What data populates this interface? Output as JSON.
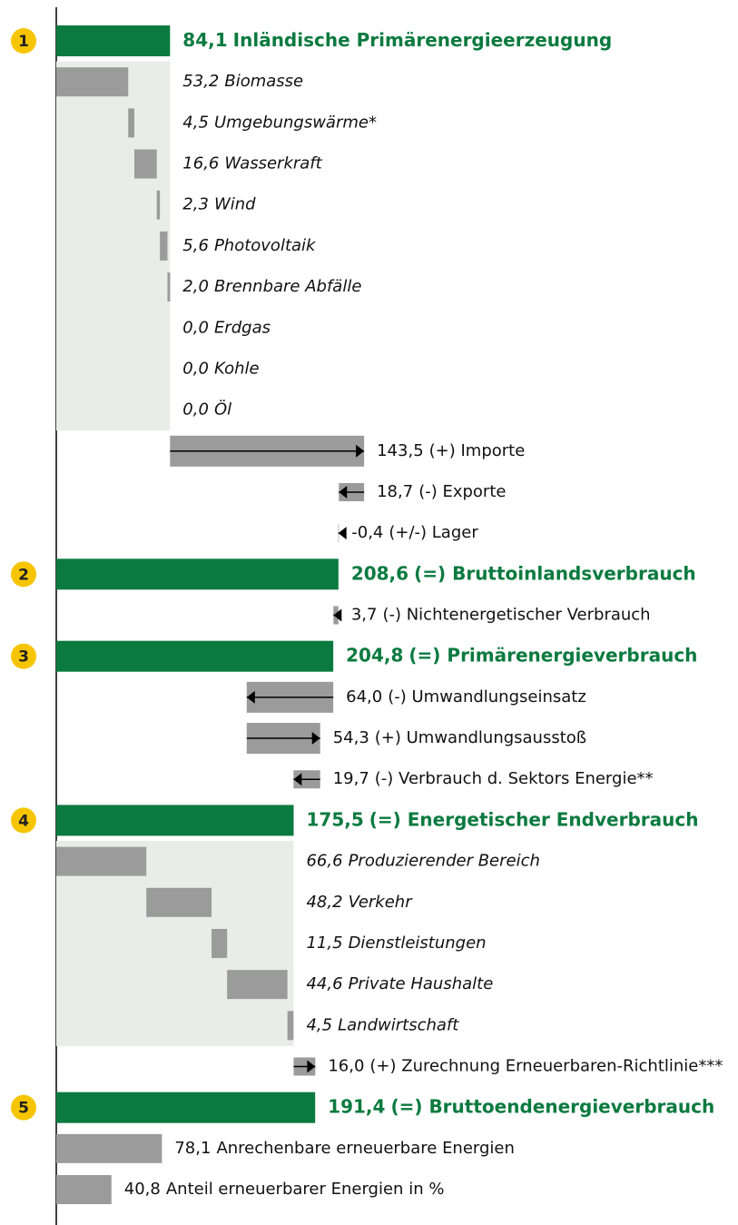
{
  "chart_data": {
    "type": "waterfall",
    "colors": {
      "total": "#0b7a3f",
      "bar": "#9b9b9b",
      "panel": "#e8ede8",
      "arrow": "#000000",
      "badge": "#f7c500"
    },
    "rows": [
      {
        "badge": "1",
        "style": "total",
        "value": 84.1,
        "value_label": "84,1",
        "name": "Inländische Primärenergieerzeugung"
      },
      {
        "style": "part",
        "value": 53.2,
        "value_label": "53,2",
        "name": "Biomasse"
      },
      {
        "style": "part",
        "value": 4.5,
        "value_label": "4,5",
        "name": "Umgebungswärme*"
      },
      {
        "style": "part",
        "value": 16.6,
        "value_label": "16,6",
        "name": "Wasserkraft"
      },
      {
        "style": "part",
        "value": 2.3,
        "value_label": "2,3",
        "name": "Wind"
      },
      {
        "style": "part",
        "value": 5.6,
        "value_label": "5,6",
        "name": "Photovoltaik"
      },
      {
        "style": "part",
        "value": 2.0,
        "value_label": "2,0",
        "name": "Brennbare Abfälle"
      },
      {
        "style": "part",
        "value": 0.0,
        "value_label": "0,0",
        "name": "Erdgas"
      },
      {
        "style": "part",
        "value": 0.0,
        "value_label": "0,0",
        "name": "Kohle"
      },
      {
        "style": "part",
        "value": 0.0,
        "value_label": "0,0",
        "name": "Öl"
      },
      {
        "style": "add",
        "value": 143.5,
        "value_label": "143,5",
        "name": "(+) Importe"
      },
      {
        "style": "subtract",
        "value": 18.7,
        "value_label": "18,7",
        "name": "(-) Exporte"
      },
      {
        "style": "add",
        "value": -0.4,
        "value_label": "-0,4",
        "name": "(+/-) Lager"
      },
      {
        "badge": "2",
        "style": "total",
        "value": 208.6,
        "value_label": "208,6",
        "name": "(=) Bruttoinlandsverbrauch"
      },
      {
        "style": "subtract",
        "value": 3.7,
        "value_label": "3,7",
        "name": "(-) Nichtenergetischer Verbrauch"
      },
      {
        "badge": "3",
        "style": "total",
        "value": 204.8,
        "value_label": "204,8",
        "name": "(=) Primärenergieverbrauch"
      },
      {
        "style": "subtract",
        "value": 64.0,
        "value_label": "64,0",
        "name": "(-) Umwandlungseinsatz"
      },
      {
        "style": "add",
        "value": 54.3,
        "value_label": "54,3",
        "name": "(+) Umwandlungsausstoß"
      },
      {
        "style": "subtract",
        "value": 19.7,
        "value_label": "19,7",
        "name": "(-) Verbrauch d. Sektors Energie**"
      },
      {
        "badge": "4",
        "style": "total",
        "value": 175.5,
        "value_label": "175,5",
        "name": "(=) Energetischer Endverbrauch"
      },
      {
        "style": "part",
        "value": 66.6,
        "value_label": "66,6",
        "name": "Produzierender Bereich"
      },
      {
        "style": "part",
        "value": 48.2,
        "value_label": "48,2",
        "name": "Verkehr"
      },
      {
        "style": "part",
        "value": 11.5,
        "value_label": "11,5",
        "name": "Dienstleistungen"
      },
      {
        "style": "part",
        "value": 44.6,
        "value_label": "44,6",
        "name": "Private Haushalte"
      },
      {
        "style": "part",
        "value": 4.5,
        "value_label": "4,5",
        "name": "Landwirtschaft"
      },
      {
        "style": "add",
        "value": 16.0,
        "value_label": "16,0",
        "name": "(+) Zurechnung Erneuerbaren-Richtlinie***"
      },
      {
        "badge": "5",
        "style": "total",
        "value": 191.4,
        "value_label": "191,4",
        "name": "(=) Bruttoendenergieverbrauch"
      },
      {
        "style": "share",
        "value": 78.1,
        "value_label": "78,1",
        "name": "Anrechenbare erneuerbare Energien"
      },
      {
        "style": "share",
        "value": 40.8,
        "value_label": "40,8",
        "name": "Anteil erneuerbarer Energien in %"
      }
    ]
  }
}
